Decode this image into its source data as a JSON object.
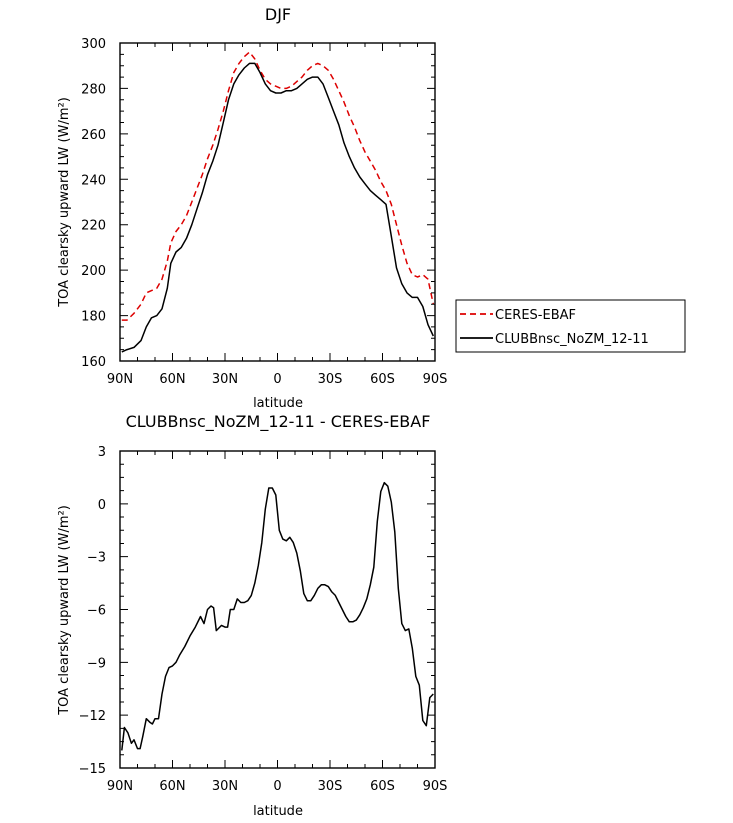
{
  "chart_data": [
    {
      "type": "line",
      "title": "DJF",
      "xlabel": "latitude",
      "ylabel": "TOA clearsky upward LW (W/m²)",
      "xlim": [
        -90,
        90
      ],
      "ylim": [
        160,
        300
      ],
      "x_ticks": [
        -90,
        -60,
        -30,
        0,
        30,
        60,
        90
      ],
      "x_tick_labels": [
        "90N",
        "60N",
        "30N",
        "0",
        "30S",
        "60S",
        "90S"
      ],
      "y_ticks": [
        160,
        180,
        200,
        220,
        240,
        260,
        280,
        300
      ],
      "y_tick_labels": [
        "160",
        "180",
        "200",
        "220",
        "240",
        "260",
        "280",
        "300"
      ],
      "legend_position": "right",
      "series": [
        {
          "name": "CERES-EBAF",
          "color": "#dd0000",
          "dash": "dashed",
          "x": [
            -89,
            -86,
            -82,
            -78,
            -75,
            -72,
            -69,
            -66,
            -63,
            -61,
            -58,
            -55,
            -52,
            -49,
            -46,
            -43,
            -40,
            -37,
            -34,
            -31,
            -28,
            -25,
            -22,
            -19,
            -16,
            -13,
            -10,
            -7,
            -4,
            -1,
            2,
            5,
            8,
            11,
            14,
            17,
            20,
            23,
            26,
            29,
            32,
            35,
            38,
            41,
            44,
            47,
            50,
            53,
            56,
            59,
            62,
            65,
            68,
            71,
            74,
            77,
            80,
            83,
            86,
            89
          ],
          "y": [
            178,
            178,
            181,
            185,
            190,
            191,
            192,
            196,
            204,
            212,
            217,
            220,
            224,
            230,
            236,
            242,
            249,
            255,
            262,
            270,
            279,
            287,
            291,
            294,
            296,
            293,
            288,
            284,
            282,
            281,
            280,
            280,
            281,
            283,
            285,
            288,
            290,
            291,
            290,
            288,
            284,
            279,
            274,
            268,
            263,
            257,
            252,
            248,
            244,
            239,
            235,
            229,
            220,
            211,
            203,
            198,
            197,
            198,
            196,
            185
          ]
        },
        {
          "name": "CLUBBnsc_NoZM_12-11",
          "color": "#000000",
          "dash": "solid",
          "x": [
            -89,
            -86,
            -82,
            -78,
            -75,
            -72,
            -69,
            -66,
            -63,
            -61,
            -58,
            -55,
            -52,
            -49,
            -46,
            -43,
            -40,
            -37,
            -34,
            -31,
            -28,
            -25,
            -22,
            -19,
            -16,
            -13,
            -10,
            -7,
            -4,
            -1,
            2,
            5,
            8,
            11,
            14,
            17,
            20,
            23,
            26,
            29,
            32,
            35,
            38,
            41,
            44,
            47,
            50,
            53,
            56,
            59,
            62,
            65,
            68,
            71,
            74,
            77,
            80,
            83,
            86,
            89
          ],
          "y": [
            164,
            165,
            166,
            169,
            175,
            179,
            180,
            183,
            192,
            203,
            208,
            210,
            214,
            220,
            227,
            234,
            242,
            248,
            255,
            265,
            275,
            282,
            286,
            289,
            291,
            291,
            287,
            282,
            279,
            278,
            278,
            279,
            279,
            280,
            282,
            284,
            285,
            285,
            282,
            276,
            270,
            264,
            256,
            250,
            245,
            241,
            238,
            235,
            233,
            231,
            229,
            215,
            201,
            194,
            190,
            188,
            188,
            184,
            176,
            171
          ]
        }
      ]
    },
    {
      "type": "line",
      "title": "CLUBBnsc_NoZM_12-11 - CERES-EBAF",
      "xlabel": "latitude",
      "ylabel": "TOA clearsky upward LW (W/m²)",
      "xlim": [
        -90,
        90
      ],
      "ylim": [
        -15,
        3
      ],
      "x_ticks": [
        -90,
        -60,
        -30,
        0,
        30,
        60,
        90
      ],
      "x_tick_labels": [
        "90N",
        "60N",
        "30N",
        "0",
        "30S",
        "60S",
        "90S"
      ],
      "y_ticks": [
        -15,
        -12,
        -9,
        -6,
        -3,
        0,
        3
      ],
      "y_tick_labels": [
        "−15",
        "−12",
        "−9",
        "−6",
        "−3",
        "0",
        "3"
      ],
      "series": [
        {
          "color": "#000000",
          "dash": "solid",
          "x": [
            -89,
            -87.5,
            -85.5,
            -83.5,
            -82,
            -80,
            -78.5,
            -77,
            -75,
            -73,
            -71.5,
            -70,
            -68,
            -66,
            -64,
            -62,
            -60,
            -58,
            -56,
            -53,
            -50,
            -47,
            -44,
            -42,
            -40,
            -38,
            -36.5,
            -35,
            -32,
            -30,
            -28.5,
            -27,
            -25,
            -23,
            -21,
            -19,
            -17,
            -15,
            -13,
            -11,
            -9,
            -7,
            -5,
            -3,
            -1,
            1,
            3,
            5,
            7,
            9,
            11,
            13,
            15,
            17,
            19,
            21,
            23,
            25,
            27,
            29,
            31,
            33,
            35,
            37,
            39,
            41,
            43,
            45,
            47,
            49,
            51,
            53,
            55,
            57,
            59,
            61,
            63,
            65,
            67,
            69,
            71,
            73,
            75,
            77,
            79,
            81,
            83,
            85,
            87,
            89
          ],
          "y": [
            -14.0,
            -12.7,
            -13.0,
            -13.6,
            -13.4,
            -13.9,
            -13.9,
            -13.2,
            -12.2,
            -12.4,
            -12.5,
            -12.2,
            -12.2,
            -10.8,
            -9.8,
            -9.3,
            -9.2,
            -9.0,
            -8.6,
            -8.1,
            -7.5,
            -7.0,
            -6.4,
            -6.8,
            -6.0,
            -5.8,
            -5.9,
            -7.2,
            -6.9,
            -7.0,
            -7.0,
            -6.0,
            -6.0,
            -5.4,
            -5.6,
            -5.6,
            -5.5,
            -5.2,
            -4.5,
            -3.5,
            -2.2,
            -0.3,
            0.9,
            0.9,
            0.5,
            -1.5,
            -2.0,
            -2.1,
            -1.9,
            -2.2,
            -2.8,
            -3.8,
            -5.1,
            -5.5,
            -5.5,
            -5.2,
            -4.8,
            -4.6,
            -4.6,
            -4.7,
            -5.0,
            -5.2,
            -5.6,
            -6.0,
            -6.4,
            -6.7,
            -6.7,
            -6.6,
            -6.3,
            -5.9,
            -5.4,
            -4.6,
            -3.6,
            -1.0,
            0.7,
            1.2,
            1.0,
            0.1,
            -1.6,
            -4.8,
            -6.8,
            -7.2,
            -7.1,
            -8.2,
            -9.8,
            -10.3,
            -12.3,
            -12.6,
            -11.0,
            -10.8
          ]
        }
      ]
    }
  ]
}
